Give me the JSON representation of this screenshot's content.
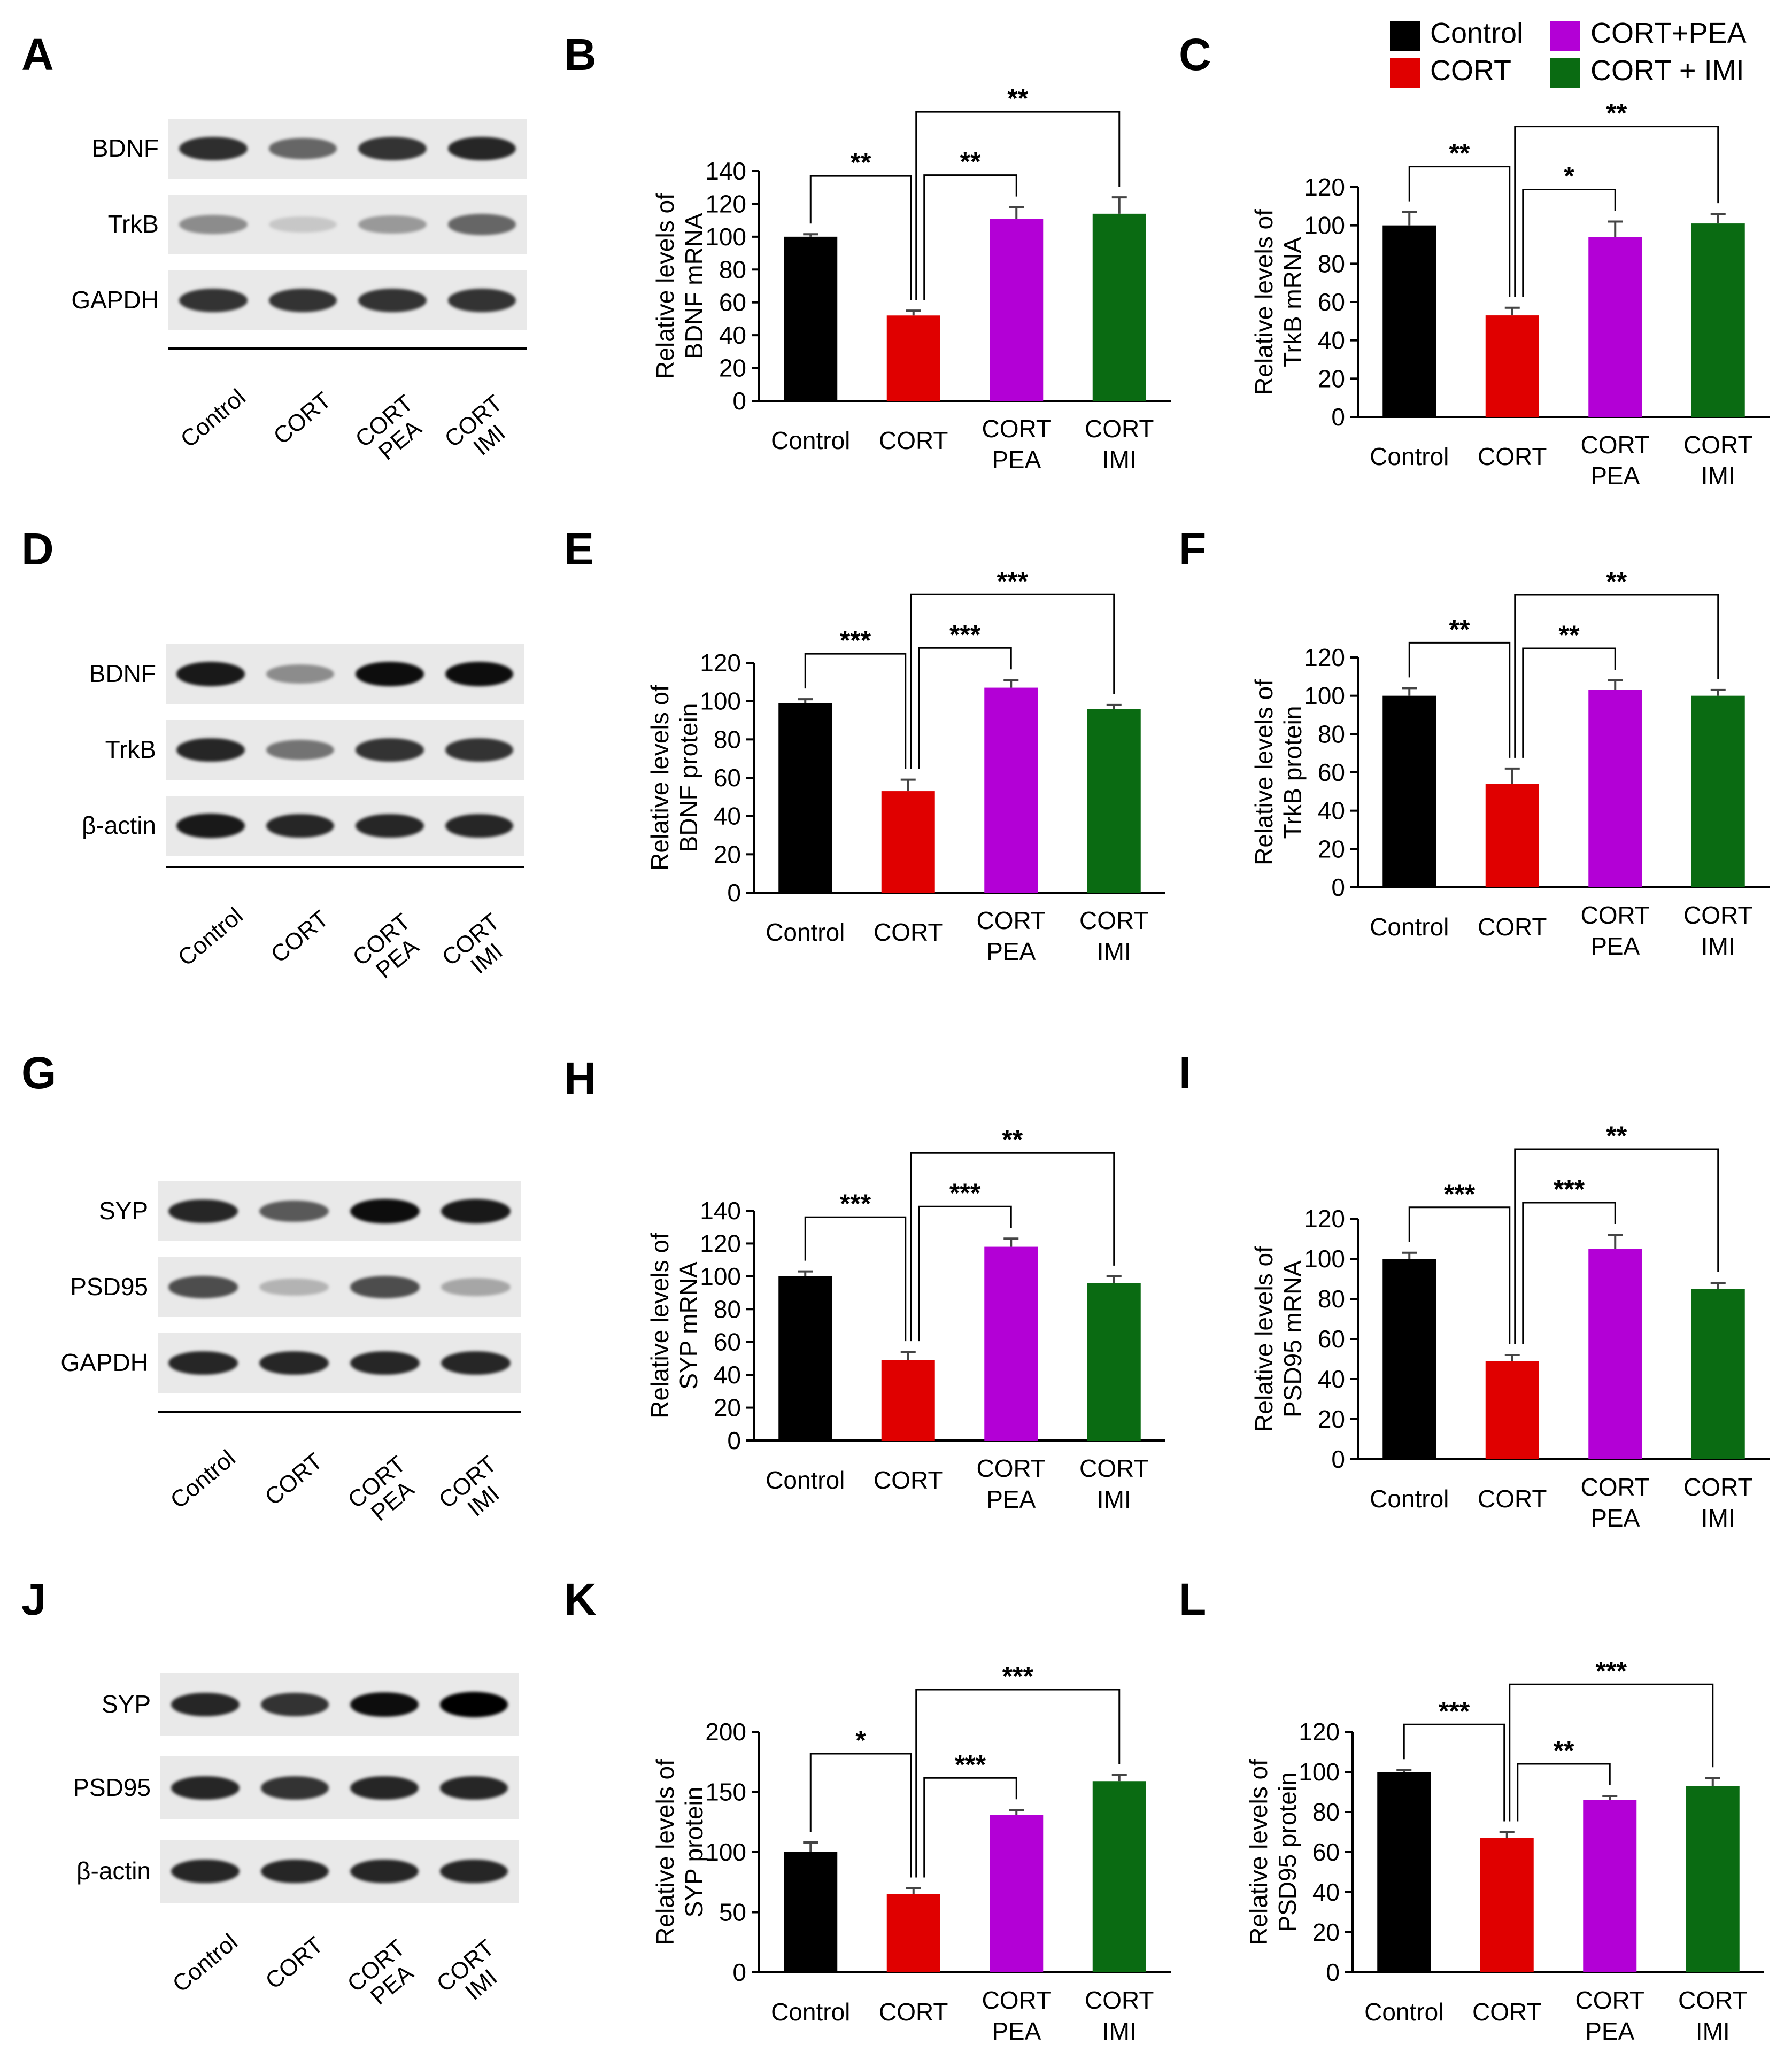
{
  "colors": {
    "Control": "#000000",
    "CORT": "#e00000",
    "CORT+PEA": "#b300d6",
    "CORT + IMI": "#0a6b12"
  },
  "legend": [
    "Control",
    "CORT",
    "CORT+PEA",
    "CORT + IMI"
  ],
  "lanes": [
    [
      "Control"
    ],
    [
      "CORT"
    ],
    [
      "CORT",
      "PEA"
    ],
    [
      "CORT",
      "IMI"
    ]
  ],
  "blots": [
    {
      "letter": "A",
      "bands": [
        "BDNF",
        "TrkB",
        "GAPDH"
      ]
    },
    {
      "letter": "D",
      "bands": [
        "BDNF",
        "TrkB",
        "β-actin"
      ]
    },
    {
      "letter": "G",
      "bands": [
        "SYP",
        "PSD95",
        "GAPDH"
      ]
    },
    {
      "letter": "J",
      "bands": [
        "SYP",
        "PSD95",
        "β-actin"
      ]
    }
  ],
  "chart_data": [
    {
      "letter": "B",
      "type": "bar",
      "ylabel": [
        "Relative levels of",
        "BDNF mRNA"
      ],
      "categories": [
        [
          "Control"
        ],
        [
          "CORT"
        ],
        [
          "CORT",
          "PEA"
        ],
        [
          "CORT",
          "IMI"
        ]
      ],
      "values": [
        100,
        52,
        111,
        114
      ],
      "errors": [
        1.5,
        3,
        7,
        10
      ],
      "ylim": [
        0,
        140
      ],
      "yticks": [
        0,
        20,
        40,
        60,
        80,
        100,
        120,
        140
      ],
      "sig": [
        {
          "from": 0,
          "to": 1,
          "label": "**"
        },
        {
          "from": 1,
          "to": 2,
          "label": "**"
        },
        {
          "from": 1,
          "to": 3,
          "label": "**"
        }
      ]
    },
    {
      "letter": "C",
      "type": "bar",
      "ylabel": [
        "Relative levels of",
        "TrkB mRNA"
      ],
      "categories": [
        [
          "Control"
        ],
        [
          "CORT"
        ],
        [
          "CORT",
          "PEA"
        ],
        [
          "CORT",
          "IMI"
        ]
      ],
      "values": [
        100,
        53,
        94,
        101
      ],
      "errors": [
        7,
        4,
        8,
        5
      ],
      "ylim": [
        0,
        120
      ],
      "yticks": [
        0,
        20,
        40,
        60,
        80,
        100,
        120
      ],
      "sig": [
        {
          "from": 0,
          "to": 1,
          "label": "**"
        },
        {
          "from": 1,
          "to": 2,
          "label": "*"
        },
        {
          "from": 1,
          "to": 3,
          "label": "**"
        }
      ]
    },
    {
      "letter": "E",
      "type": "bar",
      "ylabel": [
        "Relative levels of",
        "BDNF protein"
      ],
      "categories": [
        [
          "Control"
        ],
        [
          "CORT"
        ],
        [
          "CORT",
          "PEA"
        ],
        [
          "CORT",
          "IMI"
        ]
      ],
      "values": [
        99,
        53,
        107,
        96
      ],
      "errors": [
        2,
        6,
        4,
        2
      ],
      "ylim": [
        0,
        120
      ],
      "yticks": [
        0,
        20,
        40,
        60,
        80,
        100,
        120
      ],
      "sig": [
        {
          "from": 0,
          "to": 1,
          "label": "***"
        },
        {
          "from": 1,
          "to": 2,
          "label": "***"
        },
        {
          "from": 1,
          "to": 3,
          "label": "***"
        }
      ]
    },
    {
      "letter": "F",
      "type": "bar",
      "ylabel": [
        "Relative levels of",
        "TrkB protein"
      ],
      "categories": [
        [
          "Control"
        ],
        [
          "CORT"
        ],
        [
          "CORT",
          "PEA"
        ],
        [
          "CORT",
          "IMI"
        ]
      ],
      "values": [
        100,
        54,
        103,
        100
      ],
      "errors": [
        4,
        8,
        5,
        3
      ],
      "ylim": [
        0,
        120
      ],
      "yticks": [
        0,
        20,
        40,
        60,
        80,
        100,
        120
      ],
      "sig": [
        {
          "from": 0,
          "to": 1,
          "label": "**"
        },
        {
          "from": 1,
          "to": 2,
          "label": "**"
        },
        {
          "from": 1,
          "to": 3,
          "label": "**"
        }
      ]
    },
    {
      "letter": "H",
      "type": "bar",
      "ylabel": [
        "Relative levels of",
        "SYP mRNA"
      ],
      "categories": [
        [
          "Control"
        ],
        [
          "CORT"
        ],
        [
          "CORT",
          "PEA"
        ],
        [
          "CORT",
          "IMI"
        ]
      ],
      "values": [
        100,
        49,
        118,
        96
      ],
      "errors": [
        3,
        5,
        5,
        4
      ],
      "ylim": [
        0,
        140
      ],
      "yticks": [
        0,
        20,
        40,
        60,
        80,
        100,
        120,
        140
      ],
      "sig": [
        {
          "from": 0,
          "to": 1,
          "label": "***"
        },
        {
          "from": 1,
          "to": 2,
          "label": "***"
        },
        {
          "from": 1,
          "to": 3,
          "label": "**"
        }
      ]
    },
    {
      "letter": "I",
      "type": "bar",
      "ylabel": [
        "Relative levels of",
        "PSD95 mRNA"
      ],
      "categories": [
        [
          "Control"
        ],
        [
          "CORT"
        ],
        [
          "CORT",
          "PEA"
        ],
        [
          "CORT",
          "IMI"
        ]
      ],
      "values": [
        100,
        49,
        105,
        85
      ],
      "errors": [
        3,
        3,
        7,
        3
      ],
      "ylim": [
        0,
        120
      ],
      "yticks": [
        0,
        20,
        40,
        60,
        80,
        100,
        120
      ],
      "sig": [
        {
          "from": 0,
          "to": 1,
          "label": "***"
        },
        {
          "from": 1,
          "to": 2,
          "label": "***"
        },
        {
          "from": 1,
          "to": 3,
          "label": "**"
        }
      ]
    },
    {
      "letter": "K",
      "type": "bar",
      "ylabel": [
        "Relative levels of",
        "SYP protein"
      ],
      "categories": [
        [
          "Control"
        ],
        [
          "CORT"
        ],
        [
          "CORT",
          "PEA"
        ],
        [
          "CORT",
          "IMI"
        ]
      ],
      "values": [
        100,
        65,
        131,
        159
      ],
      "errors": [
        8,
        5,
        4,
        5
      ],
      "ylim": [
        0,
        200
      ],
      "yticks": [
        0,
        50,
        100,
        150,
        200
      ],
      "sig": [
        {
          "from": 0,
          "to": 1,
          "label": "*"
        },
        {
          "from": 1,
          "to": 2,
          "label": "***"
        },
        {
          "from": 1,
          "to": 3,
          "label": "***"
        }
      ]
    },
    {
      "letter": "L",
      "type": "bar",
      "ylabel": [
        "Relative levels of",
        "PSD95 protein"
      ],
      "categories": [
        [
          "Control"
        ],
        [
          "CORT"
        ],
        [
          "CORT",
          "PEA"
        ],
        [
          "CORT",
          "IMI"
        ]
      ],
      "values": [
        100,
        67,
        86,
        93
      ],
      "errors": [
        1,
        3,
        2,
        4
      ],
      "ylim": [
        0,
        120
      ],
      "yticks": [
        0,
        20,
        40,
        60,
        80,
        100,
        120
      ],
      "sig": [
        {
          "from": 0,
          "to": 1,
          "label": "***"
        },
        {
          "from": 1,
          "to": 2,
          "label": "**"
        },
        {
          "from": 1,
          "to": 3,
          "label": "***"
        }
      ]
    }
  ]
}
